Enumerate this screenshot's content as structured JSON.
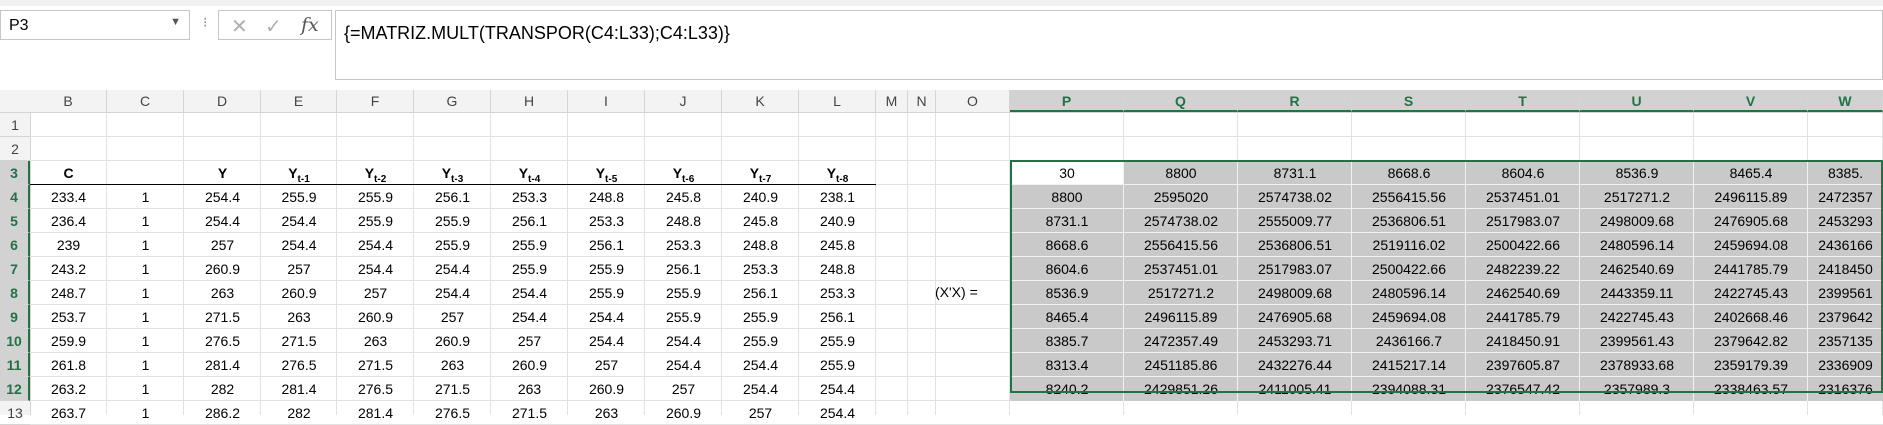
{
  "name_box": {
    "value": "P3"
  },
  "formula_bar": {
    "text": "{=MATRIZ.MULT(TRANSPOR(C4:L33);C4:L33)}"
  },
  "column_headers": [
    "B",
    "C",
    "D",
    "E",
    "F",
    "G",
    "H",
    "I",
    "J",
    "K",
    "L",
    "M",
    "N",
    "O",
    "P",
    "Q",
    "R",
    "S",
    "T",
    "U",
    "V",
    "W"
  ],
  "selected_columns": [
    "P",
    "Q",
    "R",
    "S",
    "T",
    "U",
    "V",
    "W"
  ],
  "row_headers": [
    "1",
    "2",
    "3",
    "4",
    "5",
    "6",
    "7",
    "8",
    "9",
    "10",
    "11",
    "12",
    "13"
  ],
  "selected_rows": [
    "3",
    "4",
    "5",
    "6",
    "7",
    "8",
    "9",
    "10",
    "11",
    "12"
  ],
  "left_table": {
    "headers": [
      {
        "text": "C",
        "sub": ""
      },
      {
        "text": "",
        "sub": ""
      },
      {
        "text": "Y",
        "sub": ""
      },
      {
        "text": "Y",
        "sub": "t-1"
      },
      {
        "text": "Y",
        "sub": "t-2"
      },
      {
        "text": "Y",
        "sub": "t-3"
      },
      {
        "text": "Y",
        "sub": "t-4"
      },
      {
        "text": "Y",
        "sub": "t-5"
      },
      {
        "text": "Y",
        "sub": "t-6"
      },
      {
        "text": "Y",
        "sub": "t-7"
      },
      {
        "text": "Y",
        "sub": "t-8"
      }
    ],
    "rows": [
      [
        "233.4",
        "1",
        "254.4",
        "255.9",
        "255.9",
        "256.1",
        "253.3",
        "248.8",
        "245.8",
        "240.9",
        "238.1"
      ],
      [
        "236.4",
        "1",
        "254.4",
        "254.4",
        "255.9",
        "255.9",
        "256.1",
        "253.3",
        "248.8",
        "245.8",
        "240.9"
      ],
      [
        "239",
        "1",
        "257",
        "254.4",
        "254.4",
        "255.9",
        "255.9",
        "256.1",
        "253.3",
        "248.8",
        "245.8"
      ],
      [
        "243.2",
        "1",
        "260.9",
        "257",
        "254.4",
        "254.4",
        "255.9",
        "255.9",
        "256.1",
        "253.3",
        "248.8"
      ],
      [
        "248.7",
        "1",
        "263",
        "260.9",
        "257",
        "254.4",
        "254.4",
        "255.9",
        "255.9",
        "256.1",
        "253.3"
      ],
      [
        "253.7",
        "1",
        "271.5",
        "263",
        "260.9",
        "257",
        "254.4",
        "254.4",
        "255.9",
        "255.9",
        "256.1"
      ],
      [
        "259.9",
        "1",
        "276.5",
        "271.5",
        "263",
        "260.9",
        "257",
        "254.4",
        "254.4",
        "255.9",
        "255.9"
      ],
      [
        "261.8",
        "1",
        "281.4",
        "276.5",
        "271.5",
        "263",
        "260.9",
        "257",
        "254.4",
        "254.4",
        "255.9"
      ],
      [
        "263.2",
        "1",
        "282",
        "281.4",
        "276.5",
        "271.5",
        "263",
        "260.9",
        "257",
        "254.4",
        "254.4"
      ],
      [
        "263.7",
        "1",
        "286.2",
        "282",
        "281.4",
        "276.5",
        "271.5",
        "263",
        "260.9",
        "257",
        "254.4"
      ]
    ]
  },
  "matrix_label": "(X'X) =",
  "matrix": {
    "rows": [
      [
        "30",
        "8800",
        "8731.1",
        "8668.6",
        "8604.6",
        "8536.9",
        "8465.4",
        "8385."
      ],
      [
        "8800",
        "2595020",
        "2574738.02",
        "2556415.56",
        "2537451.01",
        "2517271.2",
        "2496115.89",
        "2472357"
      ],
      [
        "8731.1",
        "2574738.02",
        "2555009.77",
        "2536806.51",
        "2517983.07",
        "2498009.68",
        "2476905.68",
        "2453293"
      ],
      [
        "8668.6",
        "2556415.56",
        "2536806.51",
        "2519116.02",
        "2500422.66",
        "2480596.14",
        "2459694.08",
        "2436166"
      ],
      [
        "8604.6",
        "2537451.01",
        "2517983.07",
        "2500422.66",
        "2482239.22",
        "2462540.69",
        "2441785.79",
        "2418450"
      ],
      [
        "8536.9",
        "2517271.2",
        "2498009.68",
        "2480596.14",
        "2462540.69",
        "2443359.11",
        "2422745.43",
        "2399561"
      ],
      [
        "8465.4",
        "2496115.89",
        "2476905.68",
        "2459694.08",
        "2441785.79",
        "2422745.43",
        "2402668.46",
        "2379642"
      ],
      [
        "8385.7",
        "2472357.49",
        "2453293.71",
        "2436166.7",
        "2418450.91",
        "2399561.43",
        "2379642.82",
        "2357135"
      ],
      [
        "8313.4",
        "2451185.86",
        "2432276.44",
        "2415217.14",
        "2397605.87",
        "2378933.68",
        "2359179.39",
        "2336909"
      ],
      [
        "8240.2",
        "2429851.26",
        "2411005.41",
        "2394088.31",
        "2376547.42",
        "2357989.3",
        "2338463.57",
        "2316376"
      ]
    ]
  },
  "icons": {
    "cancel": "cancel-x-icon",
    "enter": "enter-check-icon",
    "function": "fx-icon"
  },
  "colors": {
    "selection_border": "#217346",
    "selected_cells": "#c9c9c9",
    "header_bg": "#f3f3f3"
  }
}
